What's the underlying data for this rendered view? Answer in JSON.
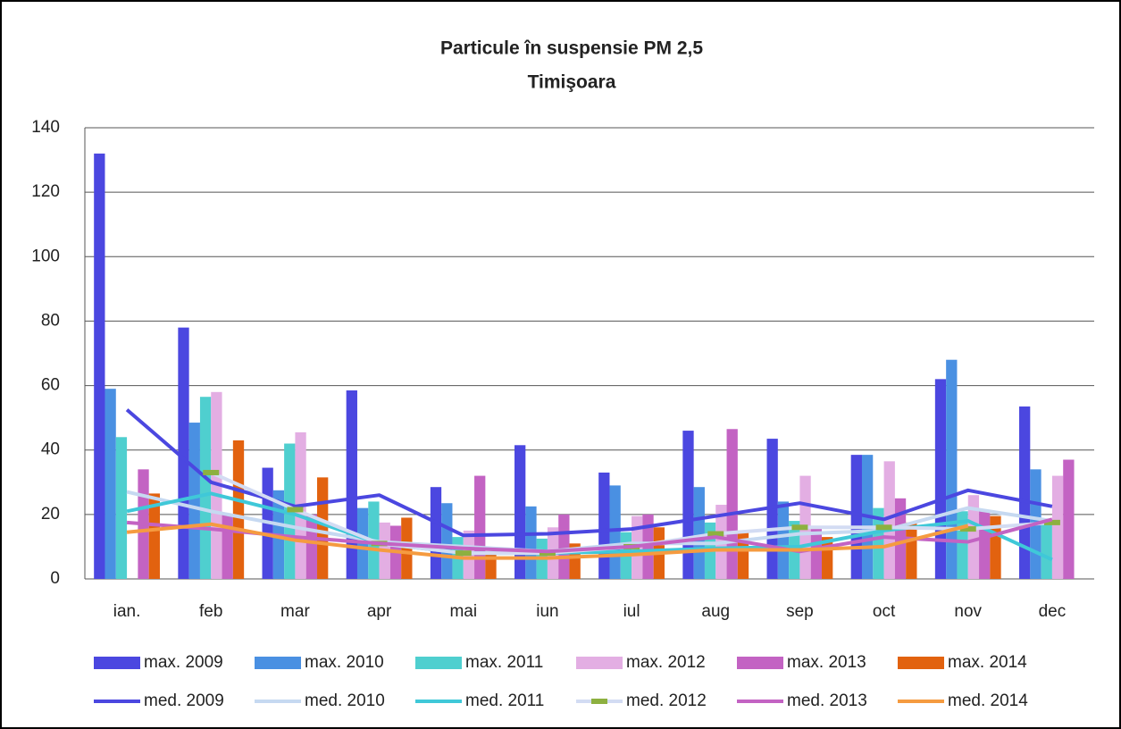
{
  "chart_data": {
    "type": "bar",
    "title": "Particule în suspensie PM 2,5",
    "subtitle": "Timişoara",
    "categories": [
      "ian.",
      "feb",
      "mar",
      "apr",
      "mai",
      "iun",
      "iul",
      "aug",
      "sep",
      "oct",
      "nov",
      "dec"
    ],
    "ylim": [
      0,
      140
    ],
    "yticks": [
      0,
      20,
      40,
      60,
      80,
      100,
      120,
      140
    ],
    "grid": true,
    "series": [
      {
        "name": "max. 2009",
        "type": "bar",
        "color": "#4b47e0",
        "values": [
          132,
          78,
          34.5,
          58.5,
          28.5,
          41.5,
          33,
          46,
          43.5,
          38.5,
          62,
          53.5
        ]
      },
      {
        "name": "max. 2010",
        "type": "bar",
        "color": "#4a90e2",
        "values": [
          59,
          48.5,
          27.5,
          22,
          23.5,
          22.5,
          29,
          28.5,
          24,
          38.5,
          68,
          34
        ]
      },
      {
        "name": "max. 2011",
        "type": "bar",
        "color": "#4fcfcf",
        "values": [
          44,
          56.5,
          42,
          24,
          13,
          12.5,
          14.5,
          17.5,
          18,
          22,
          21,
          17
        ]
      },
      {
        "name": "max. 2012",
        "type": "bar",
        "color": "#e3aee3",
        "values": [
          null,
          58,
          45.5,
          17.5,
          15,
          16,
          19.5,
          23,
          32,
          36.5,
          26,
          32
        ]
      },
      {
        "name": "max. 2013",
        "type": "bar",
        "color": "#c363c3",
        "values": [
          34,
          20,
          20,
          16.5,
          32,
          20,
          20,
          46.5,
          16,
          25,
          21,
          37
        ]
      },
      {
        "name": "max. 2014",
        "type": "bar",
        "color": "#e2620f",
        "values": [
          26.5,
          43,
          31.5,
          19,
          8,
          11,
          16,
          15,
          13,
          17.5,
          19.5,
          null
        ]
      },
      {
        "name": "med. 2009",
        "type": "line",
        "color": "#4b47e0",
        "values": [
          52.5,
          30,
          22.5,
          26,
          13.5,
          14,
          15.5,
          19.5,
          23.5,
          18.5,
          27.5,
          22.5
        ]
      },
      {
        "name": "med. 2010",
        "type": "line",
        "color": "#c6d9f1",
        "values": [
          27,
          21,
          16,
          11.5,
          10,
          8.5,
          11,
          11,
          14,
          15,
          22,
          18
        ]
      },
      {
        "name": "med. 2011",
        "type": "line",
        "color": "#3fc8d8",
        "values": [
          21,
          26.5,
          20,
          11,
          8,
          8,
          8.5,
          9.5,
          10,
          15,
          18,
          6
        ]
      },
      {
        "name": "med. 2012",
        "type": "line",
        "color": "#d3dcf3",
        "marker_color": "#8db040",
        "values": [
          null,
          33,
          21.5,
          11,
          8,
          8,
          10,
          14,
          16,
          16,
          15.5,
          17.5
        ]
      },
      {
        "name": "med. 2013",
        "type": "line",
        "color": "#c363c3",
        "values": [
          17.5,
          15.5,
          13,
          11,
          9.5,
          8.5,
          10,
          13,
          8.5,
          13,
          11.5,
          18.5
        ]
      },
      {
        "name": "med. 2014",
        "type": "line",
        "color": "#f59b40",
        "values": [
          14.5,
          17,
          12,
          9,
          6.5,
          6.5,
          7.5,
          9,
          9,
          10,
          16.5,
          null
        ]
      }
    ]
  }
}
